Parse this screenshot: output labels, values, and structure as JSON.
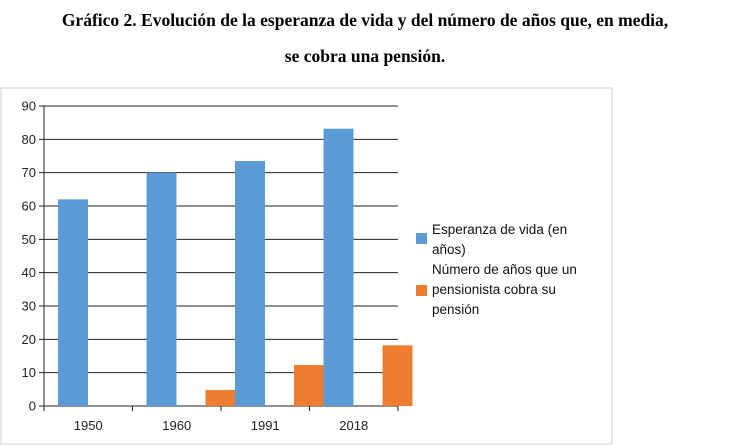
{
  "header": {
    "title_line1": "Gráfico 2. Evolución de la esperanza de vida y del número de años que, en media,",
    "title_line2": "se cobra una pensión."
  },
  "chart_data": {
    "type": "bar",
    "categories": [
      "1950",
      "1960",
      "1991",
      "2018"
    ],
    "series": [
      {
        "name": "Esperanza de vida (en años)",
        "values": [
          62,
          70,
          73.5,
          83.2
        ],
        "color": "#5b9bd5"
      },
      {
        "name": "Número de años que un pensionista cobra su pensión",
        "values": [
          0,
          4.8,
          12.3,
          18.2
        ],
        "color": "#ed7d31"
      }
    ],
    "ylim": [
      0,
      90
    ],
    "yticks": [
      0,
      10,
      20,
      30,
      40,
      50,
      60,
      70,
      80,
      90
    ],
    "grid": true,
    "legend_position": "right"
  },
  "legend": {
    "item1_line1": "Esperanza de vida (en",
    "item1_line2": "años)",
    "item2_line1": "Número de años que un",
    "item2_line2": "pensionista cobra su",
    "item2_line3": "pensión"
  }
}
